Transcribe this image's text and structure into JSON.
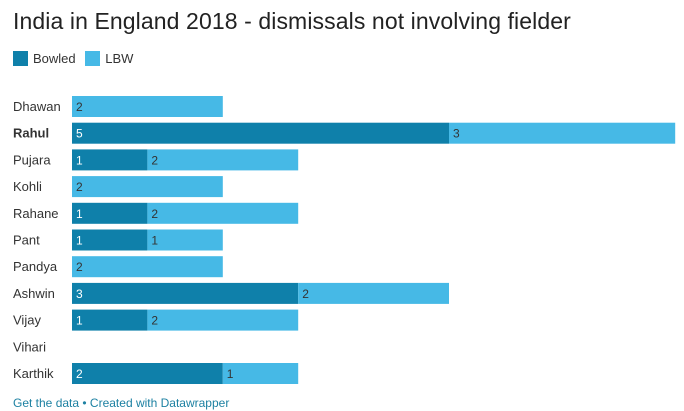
{
  "title": "India in England 2018 - dismissals not involving fielder",
  "colors": {
    "bowled": "#0f80aa",
    "lbw": "#46b9e6",
    "label_dark": "#ffffff",
    "label_light": "#333333"
  },
  "chart_data": {
    "type": "bar",
    "orientation": "horizontal",
    "stacked": true,
    "title": "India in England 2018 - dismissals not involving fielder",
    "legend_position": "top-left",
    "categories": [
      "Dhawan",
      "Rahul",
      "Pujara",
      "Kohli",
      "Rahane",
      "Pant",
      "Pandya",
      "Ashwin",
      "Vijay",
      "Vihari",
      "Karthik"
    ],
    "highlighted": [
      "Rahul"
    ],
    "xlim": [
      0,
      8
    ],
    "grid": false,
    "series": [
      {
        "name": "Bowled",
        "values": [
          0,
          5,
          1,
          0,
          1,
          1,
          0,
          3,
          1,
          0,
          2
        ]
      },
      {
        "name": "LBW",
        "values": [
          2,
          3,
          2,
          2,
          2,
          1,
          2,
          2,
          2,
          0,
          1
        ]
      }
    ]
  },
  "footer": {
    "get_data": "Get the data",
    "separator": " • ",
    "created_with": "Created with Datawrapper"
  }
}
